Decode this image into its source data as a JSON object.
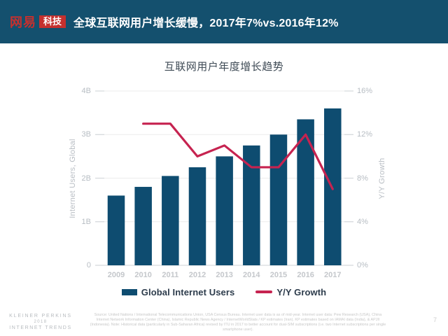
{
  "header": {
    "logo_brand": "网易",
    "logo_sub": "科技",
    "title": "全球互联网用户增长缓慢，2017年7%vs.2016年12%",
    "bg_color": "#14506e",
    "accent_red": "#c5302e"
  },
  "chart_data": {
    "type": "bar",
    "title": "互联网用户年度增长趋势",
    "categories": [
      "2009",
      "2010",
      "2011",
      "2012",
      "2013",
      "2014",
      "2015",
      "2016",
      "2017"
    ],
    "series": [
      {
        "name": "Global Internet Users",
        "type": "bar",
        "axis": "left",
        "unit": "B",
        "color": "#0e4c70",
        "values": [
          1.6,
          1.8,
          2.05,
          2.25,
          2.5,
          2.75,
          3.0,
          3.35,
          3.6
        ]
      },
      {
        "name": "Y/Y Growth",
        "type": "line",
        "axis": "right",
        "unit": "%",
        "color": "#c62350",
        "values": [
          null,
          13,
          13,
          10,
          11,
          9,
          9,
          12,
          7
        ]
      }
    ],
    "left_axis": {
      "label": "Internet Users, Global",
      "min": 0,
      "max": 4,
      "ticks": [
        "4B",
        "3B",
        "2B",
        "1B",
        "0"
      ]
    },
    "right_axis": {
      "label": "Y/Y Growth",
      "min": 0,
      "max": 16,
      "ticks": [
        "16%",
        "12%",
        "8%",
        "4%",
        "0%"
      ]
    },
    "grid": true,
    "legend_position": "bottom",
    "legend": [
      {
        "label": "Global Internet Users",
        "color": "#0e4c70",
        "shape": "rect"
      },
      {
        "label": "Y/Y Growth",
        "color": "#c62350",
        "shape": "line"
      }
    ]
  },
  "footer": {
    "brand_line1": "KLEINER PERKINS",
    "brand_line2": "2018",
    "brand_line3": "INTERNET TRENDS",
    "source": "Source: United Nations / International Telecommunications Union, USA Census Bureau. Internet user data is as of mid-year. Internet user data: Pew Research (USA), China Internet Network Information Center (China), Islamic Republic News Agency / InternetWorldStats / KP estimates (Iran). KP estimates based on IAMAI data (India), & APJII (Indonesia). Note: Historical data (particularly in Sub-Saharan Africa) revised by ITU in 2017 to better account for dual-SIM subscriptions (i.e. two Internet subscriptions per single smartphone user).",
    "page_number": "7"
  }
}
